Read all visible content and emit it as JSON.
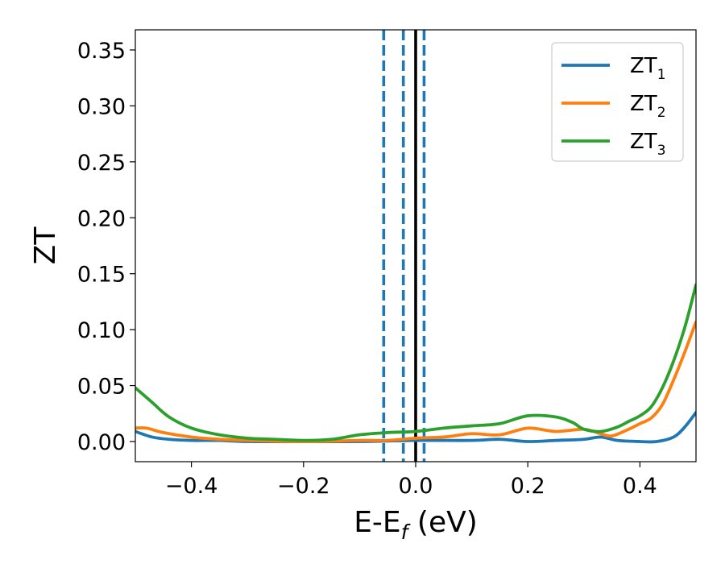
{
  "chart_data": {
    "type": "line",
    "title": "",
    "xlabel": {
      "main": "E-E",
      "sub": "f",
      "tail": " (eV)"
    },
    "ylabel": "ZT",
    "xlim": [
      -0.5,
      0.5
    ],
    "ylim": [
      -0.018,
      0.368
    ],
    "x_ticks": [
      -0.4,
      -0.2,
      0.0,
      0.2,
      0.4
    ],
    "x_tick_labels": [
      "−0.4",
      "−0.2",
      "0.0",
      "0.2",
      "0.4"
    ],
    "y_ticks": [
      0.0,
      0.05,
      0.1,
      0.15,
      0.2,
      0.25,
      0.3,
      0.35
    ],
    "y_tick_labels": [
      "0.00",
      "0.05",
      "0.10",
      "0.15",
      "0.20",
      "0.25",
      "0.30",
      "0.35"
    ],
    "grid": false,
    "legend_position": "top-right",
    "series": [
      {
        "name": "ZT",
        "name_sub": "1",
        "color": "#1f77b4",
        "x": [
          -0.5,
          -0.47,
          -0.44,
          -0.4,
          -0.35,
          -0.3,
          -0.2,
          -0.1,
          0.0,
          0.1,
          0.15,
          0.2,
          0.25,
          0.3,
          0.33,
          0.36,
          0.4,
          0.43,
          0.46,
          0.48,
          0.5
        ],
        "y": [
          0.009,
          0.004,
          0.002,
          0.001,
          0.001,
          0.0,
          0.0,
          0.0,
          0.001,
          0.001,
          0.002,
          0.0,
          0.001,
          0.002,
          0.004,
          0.001,
          0.0,
          0.0,
          0.004,
          0.013,
          0.026
        ]
      },
      {
        "name": "ZT",
        "name_sub": "2",
        "color": "#ff7f0e",
        "x": [
          -0.5,
          -0.48,
          -0.45,
          -0.4,
          -0.35,
          -0.3,
          -0.2,
          -0.1,
          -0.05,
          0.0,
          0.05,
          0.1,
          0.15,
          0.2,
          0.25,
          0.3,
          0.33,
          0.35,
          0.38,
          0.4,
          0.42,
          0.44,
          0.46,
          0.48,
          0.5
        ],
        "y": [
          0.012,
          0.012,
          0.008,
          0.004,
          0.002,
          0.001,
          0.0,
          0.001,
          0.001,
          0.003,
          0.004,
          0.007,
          0.006,
          0.012,
          0.009,
          0.011,
          0.007,
          0.005,
          0.011,
          0.016,
          0.021,
          0.033,
          0.055,
          0.08,
          0.107
        ]
      },
      {
        "name": "ZT",
        "name_sub": "3",
        "color": "#2ca02c",
        "x": [
          -0.5,
          -0.47,
          -0.44,
          -0.4,
          -0.35,
          -0.3,
          -0.25,
          -0.2,
          -0.15,
          -0.1,
          -0.05,
          0.0,
          0.05,
          0.1,
          0.15,
          0.2,
          0.25,
          0.28,
          0.3,
          0.33,
          0.36,
          0.38,
          0.4,
          0.42,
          0.44,
          0.46,
          0.48,
          0.5
        ],
        "y": [
          0.048,
          0.035,
          0.022,
          0.012,
          0.006,
          0.003,
          0.002,
          0.001,
          0.002,
          0.006,
          0.008,
          0.009,
          0.012,
          0.014,
          0.016,
          0.023,
          0.022,
          0.017,
          0.011,
          0.009,
          0.013,
          0.018,
          0.023,
          0.031,
          0.048,
          0.072,
          0.102,
          0.14
        ]
      }
    ],
    "vertical_lines": [
      {
        "x": -0.057,
        "style": "dashed",
        "color": "#1f77b4"
      },
      {
        "x": -0.022,
        "style": "dashed",
        "color": "#1f77b4"
      },
      {
        "x": 0.015,
        "style": "dashed",
        "color": "#1f77b4"
      },
      {
        "x": 0.0,
        "style": "solid",
        "color": "#000000"
      }
    ]
  }
}
